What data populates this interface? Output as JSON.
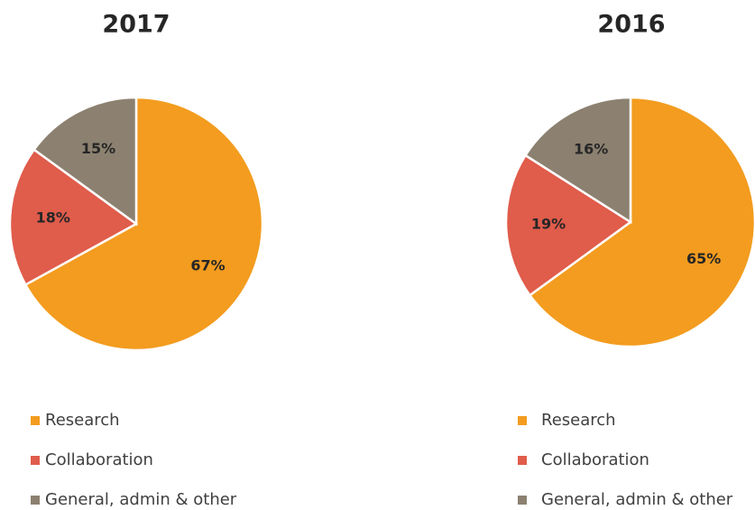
{
  "chart_data": [
    {
      "type": "pie",
      "title": "2017",
      "categories": [
        "Research",
        "Collaboration",
        "General, admin & other"
      ],
      "values": [
        67,
        18,
        15
      ],
      "value_labels": [
        "67%",
        "18%",
        "15%"
      ],
      "colors": [
        "#f39c1f",
        "#e05c4b",
        "#8c8170"
      ]
    },
    {
      "type": "pie",
      "title": "2016",
      "categories": [
        "Research",
        "Collaboration",
        "General, admin & other"
      ],
      "values": [
        65,
        19,
        16
      ],
      "value_labels": [
        "65%",
        "19%",
        "16%"
      ],
      "colors": [
        "#f39c1f",
        "#e05c4b",
        "#8c8170"
      ]
    }
  ]
}
